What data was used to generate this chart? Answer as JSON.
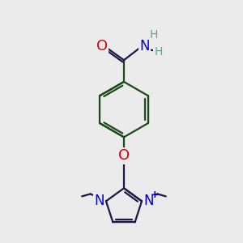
{
  "bg_color": "#ebebeb",
  "bond_color_dark": "#1a1a4a",
  "bond_color_ring": "#1a4a1a",
  "bond_width": 1.6,
  "atom_colors": {
    "O": "#dd0000",
    "N": "#0000dd",
    "H": "#5f9ea0",
    "C": "#1a1a4a"
  },
  "figsize": [
    3.0,
    3.0
  ],
  "dpi": 100
}
